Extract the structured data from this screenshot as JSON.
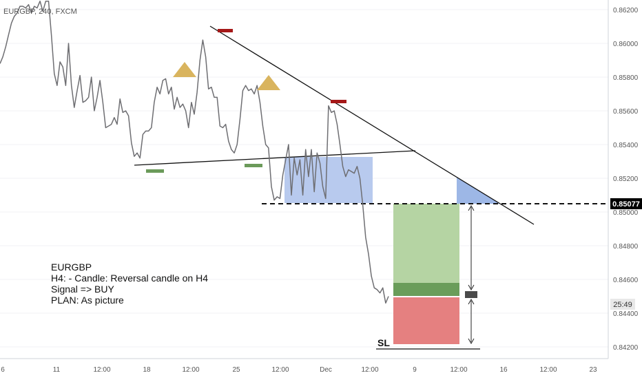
{
  "header": {
    "symbol_label": "EURGBP, 240, FXCM"
  },
  "chart_data": {
    "type": "line",
    "symbol": "EURGBP",
    "timeframe": "240",
    "source": "FXCM",
    "y_axis": {
      "ticks": [
        "0.86200",
        "0.86000",
        "0.85800",
        "0.85600",
        "0.85400",
        "0.85200",
        "0.85000",
        "0.84800",
        "0.84600",
        "0.84400",
        "0.84200"
      ],
      "ylim": [
        0.8417,
        0.8628
      ]
    },
    "x_axis": {
      "ticks": [
        "6",
        "11",
        "12:00",
        "18",
        "12:00",
        "25",
        "12:00",
        "Dec",
        "12:00",
        "9",
        "12:00",
        "16",
        "12:00",
        "23"
      ]
    },
    "price_marker": {
      "value": 0.85077,
      "label": "0.85077",
      "color": "#000000"
    },
    "timer_marker": {
      "label": "25:49",
      "value": 0.8448
    },
    "series": [
      {
        "values": [
          0.8588,
          0.8592,
          0.8598,
          0.8605,
          0.8612,
          0.8616,
          0.8618,
          0.8622,
          0.8622,
          0.8621,
          0.8623,
          0.8618,
          0.8622,
          0.8621,
          0.8625,
          0.8619,
          0.8625,
          0.8625,
          0.8605,
          0.8582,
          0.8575,
          0.8589,
          0.8586,
          0.8575,
          0.86,
          0.8575,
          0.8562,
          0.8572,
          0.8581,
          0.8565,
          0.8566,
          0.8568,
          0.858,
          0.856,
          0.8568,
          0.8578,
          0.8565,
          0.855,
          0.8551,
          0.8552,
          0.8556,
          0.8552,
          0.8567,
          0.8559,
          0.856,
          0.8557,
          0.8541,
          0.8533,
          0.8535,
          0.8532,
          0.8546,
          0.8548,
          0.8548,
          0.855,
          0.8565,
          0.8574,
          0.857,
          0.8578,
          0.8579,
          0.857,
          0.8574,
          0.8561,
          0.8568,
          0.8562,
          0.8564,
          0.856,
          0.855,
          0.8565,
          0.8558,
          0.8571,
          0.859,
          0.8602,
          0.8592,
          0.8573,
          0.8574,
          0.8568,
          0.8568,
          0.8551,
          0.855,
          0.8552,
          0.8542,
          0.8537,
          0.8535,
          0.854,
          0.8555,
          0.8572,
          0.8575,
          0.8572,
          0.8573,
          0.857,
          0.8575,
          0.8565,
          0.8551,
          0.854,
          0.8538,
          0.8515,
          0.8507,
          0.8509,
          0.8508,
          0.8522,
          0.8531,
          0.854,
          0.851,
          0.8532,
          0.8522,
          0.8531,
          0.851,
          0.8537,
          0.8521,
          0.8537,
          0.8512,
          0.8535,
          0.8529,
          0.8515,
          0.8508,
          0.8563,
          0.8559,
          0.856,
          0.8552,
          0.854,
          0.8527,
          0.8521,
          0.8525,
          0.8524,
          0.8523,
          0.8527,
          0.852,
          0.8504,
          0.8485,
          0.8475,
          0.8462,
          0.8455,
          0.8454,
          0.8452,
          0.8455,
          0.8446,
          0.845
        ]
      }
    ],
    "annotations": [
      {
        "type": "text-box",
        "lines": [
          "EURGBP",
          "H4: - Candle: Reversal candle on H4",
          "Signal => BUY",
          "PLAN: As picture"
        ]
      },
      {
        "type": "label",
        "text": "SL"
      },
      {
        "type": "triangle",
        "kind": "shoulder",
        "color": "#d9b45e"
      },
      {
        "type": "triangle",
        "kind": "shoulder",
        "color": "#d9b45e"
      },
      {
        "type": "marker",
        "kind": "top",
        "color": "#a51818"
      },
      {
        "type": "marker",
        "kind": "top",
        "color": "#a51818"
      },
      {
        "type": "marker",
        "kind": "bottom",
        "color": "#6b9a5a"
      },
      {
        "type": "marker",
        "kind": "bottom",
        "color": "#6b9a5a"
      },
      {
        "type": "trendline",
        "kind": "descending-resistance"
      },
      {
        "type": "trendline",
        "kind": "neckline"
      },
      {
        "type": "dashed-level",
        "value": 0.85077
      },
      {
        "type": "zone",
        "kind": "retest",
        "color": "#b8caee"
      },
      {
        "type": "zone",
        "kind": "target",
        "color": "#b5d4a3"
      },
      {
        "type": "zone",
        "kind": "entry",
        "color": "#6a9d5a"
      },
      {
        "type": "zone",
        "kind": "stop",
        "color": "#e58080"
      }
    ],
    "grid": true,
    "legend": "none",
    "colors": {
      "line": "#6e6e72",
      "axis_text": "#555555",
      "grid": "#f0f2f5"
    }
  }
}
